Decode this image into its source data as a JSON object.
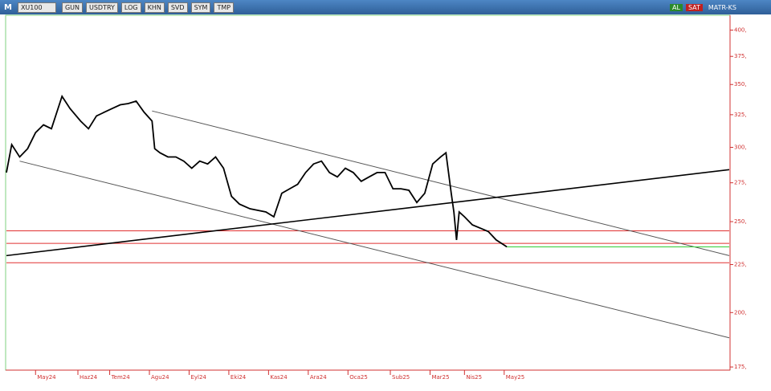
{
  "toolbar": {
    "logo": "M",
    "symbol": "XU100",
    "buttons": [
      "GUN",
      "USDTRY",
      "LOG",
      "KHN",
      "SVD",
      "SYM",
      "TMP"
    ],
    "buy": "AL",
    "sell": "SAT",
    "brand": "MATR-KS"
  },
  "chart_data": {
    "type": "line",
    "log_scale": true,
    "x": [
      0,
      2,
      5,
      8,
      11,
      14,
      17,
      21,
      24,
      28,
      31,
      34,
      37,
      40,
      43,
      46,
      49,
      52,
      55,
      56,
      58,
      61,
      64,
      67,
      70,
      73,
      76,
      79,
      82,
      85,
      88,
      92,
      95,
      98,
      101,
      104,
      107,
      110,
      113,
      116,
      119,
      122,
      125,
      128,
      131,
      134,
      137,
      140,
      143,
      146,
      149,
      152,
      155,
      158,
      161,
      164,
      166,
      168,
      169,
      170,
      171,
      173,
      176,
      179,
      182,
      185,
      188,
      189
    ],
    "series": [
      {
        "color": "#000000",
        "values": [
          282,
          302,
          293,
          299,
          311,
          317,
          314,
          340,
          330,
          320,
          314,
          324,
          327,
          330,
          333,
          334,
          336,
          327,
          320,
          299,
          296,
          293,
          293,
          290,
          285,
          290,
          288,
          293,
          285,
          266,
          261,
          258,
          257,
          256,
          253,
          268,
          271,
          274,
          282,
          288,
          290,
          282,
          279,
          285,
          282,
          276,
          279,
          282,
          282,
          271,
          271,
          270,
          262,
          268,
          288,
          293,
          296,
          268,
          256,
          239,
          256,
          253,
          248,
          246,
          244,
          239,
          236,
          235
        ]
      }
    ],
    "xlim": [
      0,
      273
    ],
    "xticks": [
      {
        "value": 11,
        "label": "May24"
      },
      {
        "value": 27,
        "label": "Haz24"
      },
      {
        "value": 39,
        "label": "Tem24"
      },
      {
        "value": 54,
        "label": "Agu24"
      },
      {
        "value": 69,
        "label": "Eyl24"
      },
      {
        "value": 84,
        "label": "Eki24"
      },
      {
        "value": 99,
        "label": "Kas24"
      },
      {
        "value": 114,
        "label": "Ara24"
      },
      {
        "value": 129,
        "label": "Oca25"
      },
      {
        "value": 145,
        "label": "Sub25"
      },
      {
        "value": 160,
        "label": "Mar25"
      },
      {
        "value": 173,
        "label": "Nis25"
      },
      {
        "value": 188,
        "label": "May25"
      }
    ],
    "ylim": [
      174,
      414
    ],
    "yticks": [
      {
        "value": 175,
        "label": "175,"
      },
      {
        "value": 200,
        "label": "200,"
      },
      {
        "value": 225,
        "label": "225,"
      },
      {
        "value": 250,
        "label": "250,"
      },
      {
        "value": 275,
        "label": "275,"
      },
      {
        "value": 300,
        "label": "300,"
      },
      {
        "value": 325,
        "label": "325,"
      },
      {
        "value": 350,
        "label": "350,"
      },
      {
        "value": 375,
        "label": "375,"
      },
      {
        "value": 400,
        "label": "400,"
      }
    ],
    "trendlines": [
      {
        "x": [
          55,
          273
        ],
        "values": [
          328,
          230
        ],
        "color": "#555555"
      },
      {
        "x": [
          5,
          273
        ],
        "values": [
          290,
          188
        ],
        "color": "#555555"
      },
      {
        "x": [
          0,
          273
        ],
        "values": [
          230,
          284
        ],
        "color": "#000000"
      },
      {
        "x": [
          189,
          273
        ],
        "values": [
          235,
          235
        ],
        "color": "#33cc33"
      }
    ],
    "hlines": [
      {
        "value": 244.4,
        "color": "#e03030"
      },
      {
        "value": 237,
        "color": "#e03030"
      },
      {
        "value": 226,
        "color": "#e03030"
      }
    ]
  }
}
